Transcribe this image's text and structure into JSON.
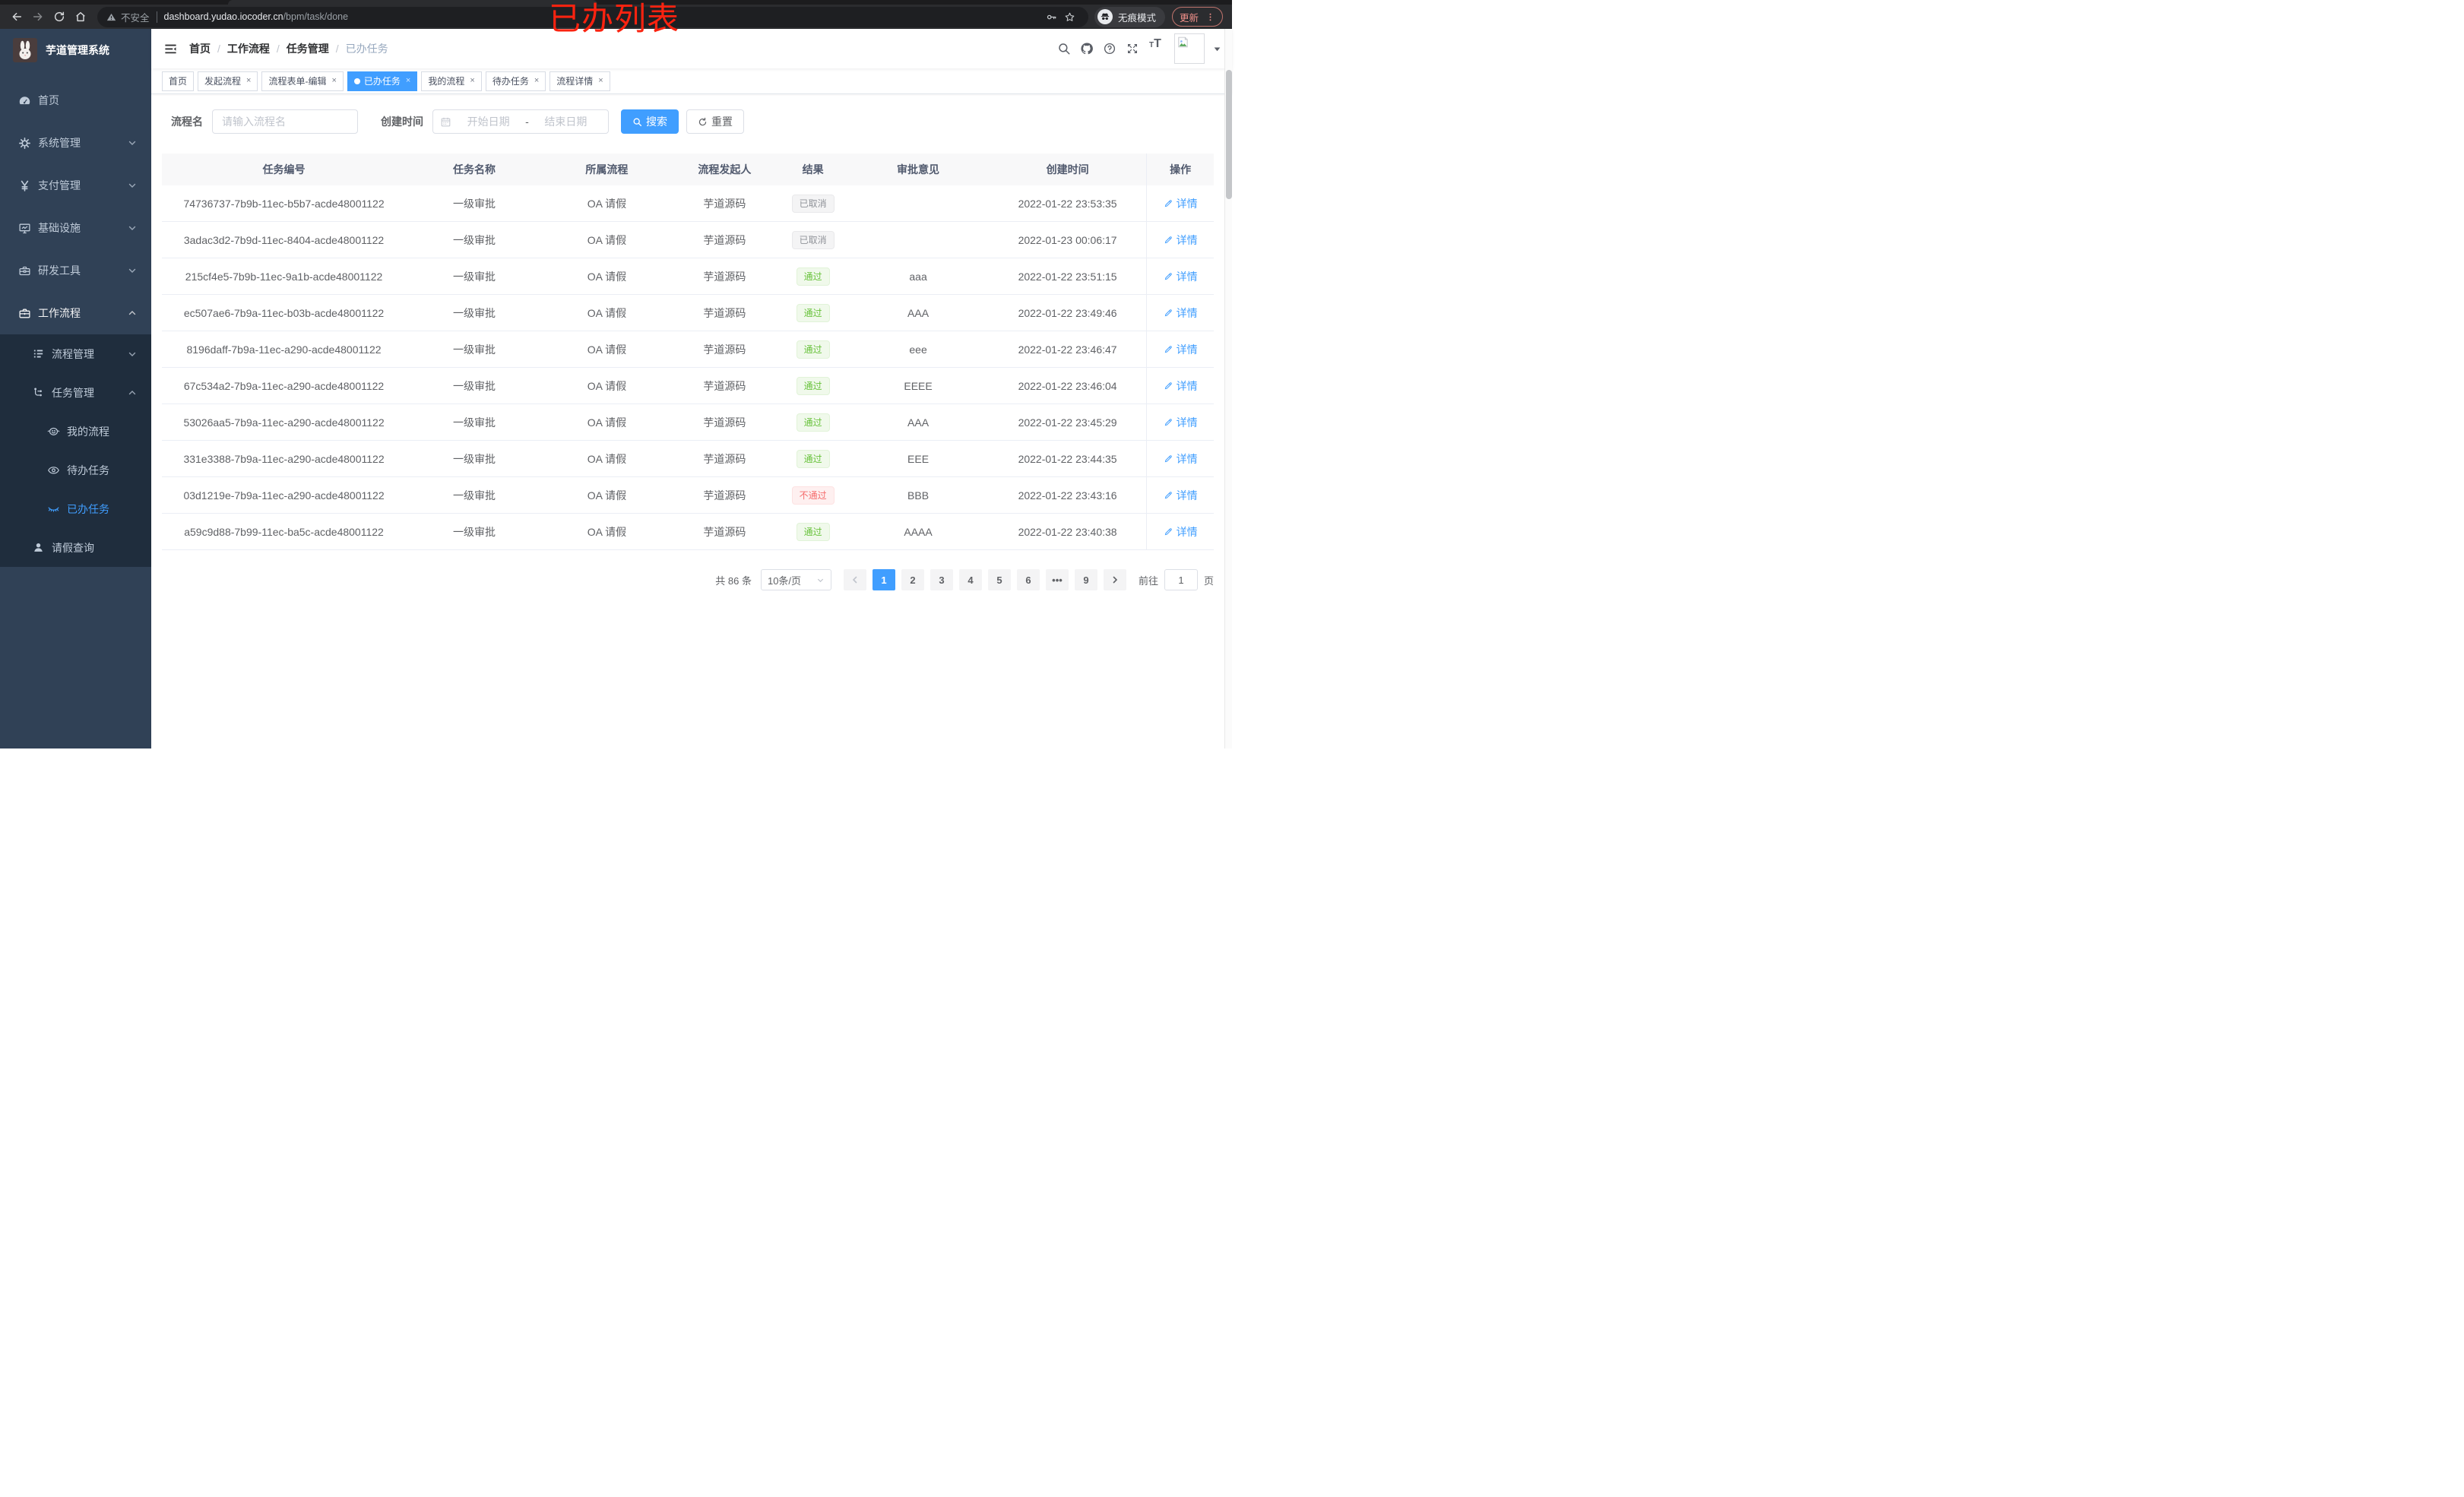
{
  "browser": {
    "security_label": "不安全",
    "url_domain": "dashboard.yudao.iocoder.cn",
    "url_path": "/bpm/task/done",
    "incognito_label": "无痕模式",
    "update_label": "更新"
  },
  "annotation_text": "已办列表",
  "colors": {
    "accent": "#409EFF",
    "sidebar_bg": "#304156",
    "submenu_bg": "#1f2d3d",
    "status_info": "#909399",
    "status_success": "#67C23A",
    "status_danger": "#F56C6C"
  },
  "sidebar": {
    "title": "芋道管理系统",
    "menu": [
      {
        "key": "home",
        "label": "首页",
        "icon": "dashboard-icon",
        "level": 0
      },
      {
        "key": "system-management",
        "label": "系统管理",
        "icon": "gear-icon",
        "level": 0,
        "chevron": "down"
      },
      {
        "key": "payment-management",
        "label": "支付管理",
        "icon": "yen-icon",
        "level": 0,
        "chevron": "down"
      },
      {
        "key": "infrastructure",
        "label": "基础设施",
        "icon": "monitor-icon",
        "level": 0,
        "chevron": "down"
      },
      {
        "key": "dev-tools",
        "label": "研发工具",
        "icon": "toolbox-icon",
        "level": 0,
        "chevron": "down"
      },
      {
        "key": "workflow",
        "label": "工作流程",
        "icon": "briefcase-icon",
        "level": 0,
        "chevron": "up",
        "open": true
      },
      {
        "key": "process-management",
        "label": "流程管理",
        "icon": "tree-list-icon",
        "level": 1,
        "sub": true,
        "chevron": "down"
      },
      {
        "key": "task-management",
        "label": "任务管理",
        "icon": "flow-icon",
        "level": 1,
        "sub": true,
        "chevron": "up"
      },
      {
        "key": "my-process",
        "label": "我的流程",
        "icon": "robot-face-icon",
        "level": 2,
        "sub": true
      },
      {
        "key": "todo-tasks",
        "label": "待办任务",
        "icon": "eye-open-icon",
        "level": 2,
        "sub": true
      },
      {
        "key": "done-tasks",
        "label": "已办任务",
        "icon": "eye-closed-icon",
        "level": 2,
        "sub": true,
        "active": true
      },
      {
        "key": "leave-query",
        "label": "请假查询",
        "icon": "user-icon",
        "level": 1,
        "sub": true
      }
    ]
  },
  "navbar": {
    "breadcrumb": [
      "首页",
      "工作流程",
      "任务管理",
      "已办任务"
    ]
  },
  "tabs": [
    {
      "key": "home",
      "label": "首页",
      "closable": false,
      "active": false
    },
    {
      "key": "start-process",
      "label": "发起流程",
      "closable": true,
      "active": false
    },
    {
      "key": "process-form-edit",
      "label": "流程表单-编辑",
      "closable": true,
      "active": false
    },
    {
      "key": "done-tasks",
      "label": "已办任务",
      "closable": true,
      "active": true
    },
    {
      "key": "my-process",
      "label": "我的流程",
      "closable": true,
      "active": false
    },
    {
      "key": "todo-tasks",
      "label": "待办任务",
      "closable": true,
      "active": false
    },
    {
      "key": "process-detail",
      "label": "流程详情",
      "closable": true,
      "active": false
    }
  ],
  "filters": {
    "name_label": "流程名",
    "name_placeholder": "请输入流程名",
    "date_label": "创建时间",
    "date_start_placeholder": "开始日期",
    "date_separator": "-",
    "date_end_placeholder": "结束日期",
    "search_label": "搜索",
    "reset_label": "重置"
  },
  "table": {
    "columns": [
      "任务编号",
      "任务名称",
      "所属流程",
      "流程发起人",
      "结果",
      "审批意见",
      "创建时间",
      "操作"
    ],
    "action_label": "详情",
    "rows": [
      {
        "id": "74736737-7b9b-11ec-b5b7-acde48001122",
        "name": "一级审批",
        "process": "OA 请假",
        "starter": "芋道源码",
        "result": "已取消",
        "result_type": "info",
        "comment": "",
        "created": "2022-01-22 23:53:35"
      },
      {
        "id": "3adac3d2-7b9d-11ec-8404-acde48001122",
        "name": "一级审批",
        "process": "OA 请假",
        "starter": "芋道源码",
        "result": "已取消",
        "result_type": "info",
        "comment": "",
        "created": "2022-01-23 00:06:17"
      },
      {
        "id": "215cf4e5-7b9b-11ec-9a1b-acde48001122",
        "name": "一级审批",
        "process": "OA 请假",
        "starter": "芋道源码",
        "result": "通过",
        "result_type": "success",
        "comment": "aaa",
        "created": "2022-01-22 23:51:15"
      },
      {
        "id": "ec507ae6-7b9a-11ec-b03b-acde48001122",
        "name": "一级审批",
        "process": "OA 请假",
        "starter": "芋道源码",
        "result": "通过",
        "result_type": "success",
        "comment": "AAA",
        "created": "2022-01-22 23:49:46"
      },
      {
        "id": "8196daff-7b9a-11ec-a290-acde48001122",
        "name": "一级审批",
        "process": "OA 请假",
        "starter": "芋道源码",
        "result": "通过",
        "result_type": "success",
        "comment": "eee",
        "created": "2022-01-22 23:46:47"
      },
      {
        "id": "67c534a2-7b9a-11ec-a290-acde48001122",
        "name": "一级审批",
        "process": "OA 请假",
        "starter": "芋道源码",
        "result": "通过",
        "result_type": "success",
        "comment": "EEEE",
        "created": "2022-01-22 23:46:04"
      },
      {
        "id": "53026aa5-7b9a-11ec-a290-acde48001122",
        "name": "一级审批",
        "process": "OA 请假",
        "starter": "芋道源码",
        "result": "通过",
        "result_type": "success",
        "comment": "AAA",
        "created": "2022-01-22 23:45:29"
      },
      {
        "id": "331e3388-7b9a-11ec-a290-acde48001122",
        "name": "一级审批",
        "process": "OA 请假",
        "starter": "芋道源码",
        "result": "通过",
        "result_type": "success",
        "comment": "EEE",
        "created": "2022-01-22 23:44:35"
      },
      {
        "id": "03d1219e-7b9a-11ec-a290-acde48001122",
        "name": "一级审批",
        "process": "OA 请假",
        "starter": "芋道源码",
        "result": "不通过",
        "result_type": "danger",
        "comment": "BBB",
        "created": "2022-01-22 23:43:16"
      },
      {
        "id": "a59c9d88-7b99-11ec-ba5c-acde48001122",
        "name": "一级审批",
        "process": "OA 请假",
        "starter": "芋道源码",
        "result": "通过",
        "result_type": "success",
        "comment": "AAAA",
        "created": "2022-01-22 23:40:38"
      }
    ]
  },
  "pagination": {
    "total_label": "共 86 条",
    "page_size_label": "10条/页",
    "pages": [
      "1",
      "2",
      "3",
      "4",
      "5",
      "6",
      "•••",
      "9"
    ],
    "active_page": "1",
    "goto_label": "前往",
    "goto_value": "1",
    "goto_suffix": "页"
  }
}
